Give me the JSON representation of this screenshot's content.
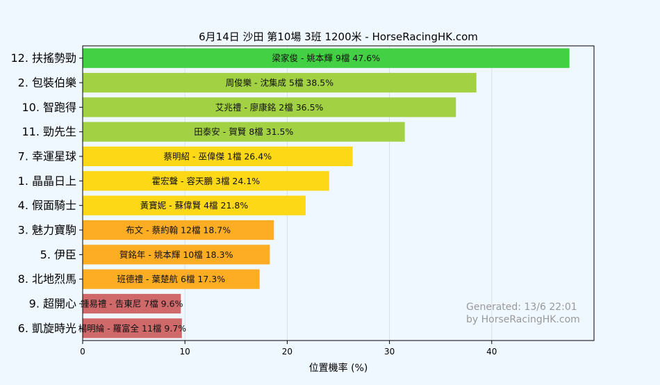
{
  "chart_data": {
    "type": "bar",
    "orientation": "horizontal",
    "title": "6月14日  沙田  第10場  3班  1200米 - HorseRacingHK.com",
    "xlabel": "位置機率 (%)",
    "ylabel": "",
    "xlim": [
      0,
      50
    ],
    "xticks": [
      "0",
      "10",
      "20",
      "30",
      "40"
    ],
    "grid": true,
    "categories": [
      "12. 扶搖勢勁",
      "2. 包裝伯樂",
      "10. 智跑得",
      "11. 勁先生",
      "7. 幸運星球",
      "1. 晶晶日上",
      "4. 假面騎士",
      "3. 魅力寶駒",
      "5. 伊臣",
      "8. 北地烈馬",
      "9. 超開心",
      "6. 凱旋時光"
    ],
    "values": [
      47.6,
      38.5,
      36.5,
      31.5,
      26.4,
      24.1,
      21.8,
      18.7,
      18.3,
      17.3,
      9.6,
      9.7
    ],
    "bar_labels": [
      "梁家俊 - 姚本輝 9檔  47.6%",
      "周俊樂 - 沈集成 5檔  38.5%",
      "艾兆禮 - 廖康銘 2檔  36.5%",
      "田泰安 - 賀賢 8檔  31.5%",
      "蔡明紹 - 巫偉傑 1檔  26.4%",
      "霍宏聲 - 容天鵬 3檔  24.1%",
      "黃寶妮 - 蘇偉賢 4檔  21.8%",
      "布文 - 蔡約翰 12檔  18.7%",
      "賀銘年 - 姚本輝 10檔  18.3%",
      "班德禮 - 葉楚航 6檔  17.3%",
      "鍾易禮 - 告東尼 7檔  9.6%",
      "楊明綸 - 羅富全 11檔  9.7%"
    ],
    "bar_colors": [
      "#44d044",
      "#a2d144",
      "#a2d144",
      "#a2d144",
      "#fcd817",
      "#fcd817",
      "#fcd817",
      "#fdad23",
      "#fdad23",
      "#fdad23",
      "#d0696a",
      "#d0696a"
    ],
    "watermark": [
      "Generated: 13/6 22:01",
      "by HorseRacingHK.com"
    ]
  },
  "colors": {
    "background": "#f0f8ff",
    "grid": "#d8dee6",
    "axis": "#000000",
    "watermark": "#999999"
  }
}
